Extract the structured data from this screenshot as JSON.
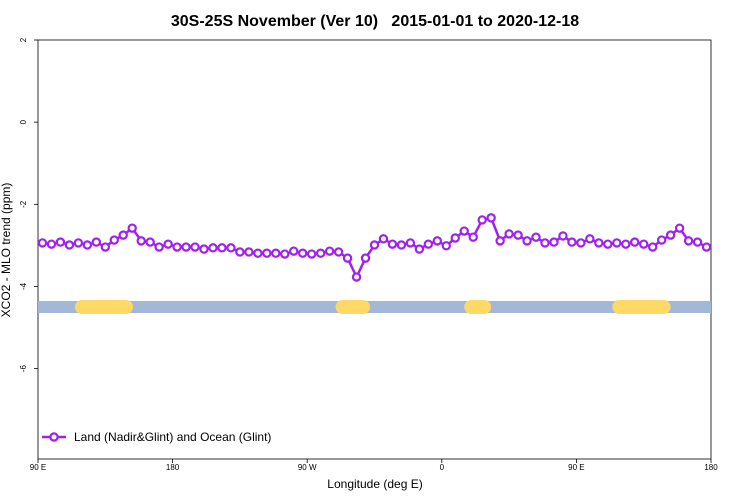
{
  "chart_data": {
    "type": "line",
    "title": "30S-25S November (Ver 10)   2015-01-01 to 2020-12-18",
    "x_label": "Longitude (deg E)",
    "y_label": "XCO2 - MLO trend (ppm)",
    "x": [
      93,
      99,
      105,
      111,
      117,
      123,
      129,
      135,
      141,
      147,
      153,
      159,
      165,
      171,
      177,
      183,
      189,
      195,
      201,
      207,
      213,
      219,
      225,
      231,
      237,
      243,
      249,
      255,
      261,
      267,
      273,
      279,
      285,
      291,
      297,
      303,
      309,
      315,
      321,
      327,
      333,
      339,
      345,
      351,
      357,
      363,
      369,
      375,
      381,
      387,
      393,
      399,
      405,
      411,
      417,
      423,
      429,
      435,
      441,
      447,
      453,
      459,
      465,
      471,
      477,
      483,
      489,
      495,
      501,
      507,
      513,
      519,
      525,
      531,
      537
    ],
    "series": [
      {
        "name": "Land (Nadir&Glint) and Ocean (Glint)",
        "color": "#a020f0",
        "values": [
          -2.94,
          -2.97,
          -2.92,
          -2.99,
          -2.94,
          -2.99,
          -2.92,
          -3.04,
          -2.87,
          -2.75,
          -2.58,
          -2.89,
          -2.92,
          -3.04,
          -2.97,
          -3.04,
          -3.04,
          -3.04,
          -3.09,
          -3.06,
          -3.06,
          -3.06,
          -3.16,
          -3.16,
          -3.19,
          -3.19,
          -3.19,
          -3.21,
          -3.14,
          -3.19,
          -3.21,
          -3.19,
          -3.14,
          -3.16,
          -3.31,
          -3.77,
          -3.31,
          -2.99,
          -2.84,
          -2.97,
          -2.99,
          -2.94,
          -3.09,
          -2.97,
          -2.89,
          -3.01,
          -2.82,
          -2.65,
          -2.8,
          -2.38,
          -2.33,
          -2.89,
          -2.72,
          -2.75,
          -2.89,
          -2.8,
          -2.94,
          -2.92,
          -2.77,
          -2.92,
          -2.94,
          -2.84,
          -2.94,
          -2.97,
          -2.94,
          -2.97,
          -2.92,
          -2.97,
          -3.04,
          -2.87,
          -2.75,
          -2.58,
          -2.89,
          -2.92,
          -3.04
        ]
      }
    ],
    "land_bands": [
      [
        114.7,
        153.5
      ],
      [
        289,
        312
      ],
      [
        375,
        393
      ],
      [
        474,
        513
      ]
    ],
    "band_level": -4.5,
    "band_colors": {
      "land": "#ffd966",
      "ocean": "#a3b8d6"
    },
    "xlim": [
      90,
      540
    ],
    "xticks": [
      {
        "value": 90,
        "label": "90 E"
      },
      180,
      {
        "value": 270,
        "label": "90 W"
      },
      {
        "value": 360,
        "label": "0"
      },
      {
        "value": 450,
        "label": "90 E"
      },
      {
        "value": 540,
        "label": "180"
      }
    ],
    "ylim": [
      -8.2,
      2
    ],
    "yticks": [
      2,
      0,
      -2,
      -4,
      -6
    ],
    "legend": "bottom-left"
  }
}
